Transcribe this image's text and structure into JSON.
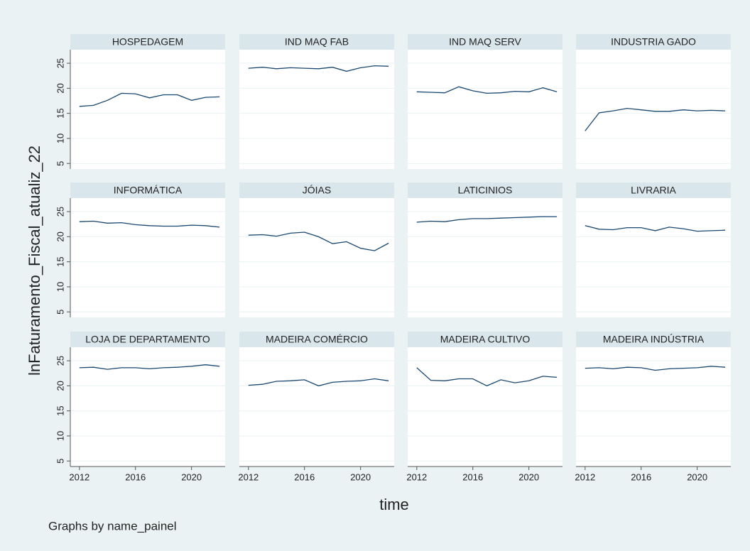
{
  "ylabel": "lnFaturamento_Fiscal_atualiz_22",
  "xlabel": "time",
  "note": "Graphs by name_painel",
  "chart_data": [
    {
      "type": "line",
      "title": "HOSPEDAGEM",
      "x": [
        2012,
        2013,
        2014,
        2015,
        2016,
        2017,
        2018,
        2019,
        2020,
        2021,
        2022
      ],
      "values": [
        16.4,
        16.6,
        17.6,
        19.0,
        18.9,
        18.1,
        18.7,
        18.7,
        17.6,
        18.2,
        18.3
      ],
      "color": "#1a476f",
      "xlim": [
        2011.35,
        2022.4
      ],
      "xticks": [
        2012,
        2016,
        2020
      ],
      "ylim": [
        3.9,
        27.7
      ],
      "yticks": [
        5,
        10,
        15,
        20,
        25
      ],
      "grid": true
    },
    {
      "type": "line",
      "title": "IND MAQ FAB",
      "x": [
        2012,
        2013,
        2014,
        2015,
        2016,
        2017,
        2018,
        2019,
        2020,
        2021,
        2022
      ],
      "values": [
        24.0,
        24.2,
        23.9,
        24.1,
        24.0,
        23.9,
        24.2,
        23.4,
        24.1,
        24.5,
        24.4
      ],
      "color": "#1a476f",
      "xlim": [
        2011.35,
        2022.4
      ],
      "xticks": [
        2012,
        2016,
        2020
      ],
      "ylim": [
        3.9,
        27.7
      ],
      "yticks": [
        5,
        10,
        15,
        20,
        25
      ],
      "grid": true
    },
    {
      "type": "line",
      "title": "IND MAQ SERV",
      "x": [
        2012,
        2013,
        2014,
        2015,
        2016,
        2017,
        2018,
        2019,
        2020,
        2021,
        2022
      ],
      "values": [
        19.3,
        19.2,
        19.1,
        20.3,
        19.5,
        19.0,
        19.1,
        19.4,
        19.3,
        20.1,
        19.3
      ],
      "color": "#1a476f",
      "xlim": [
        2011.35,
        2022.4
      ],
      "xticks": [
        2012,
        2016,
        2020
      ],
      "ylim": [
        3.9,
        27.7
      ],
      "yticks": [
        5,
        10,
        15,
        20,
        25
      ],
      "grid": true
    },
    {
      "type": "line",
      "title": "INDUSTRIA GADO",
      "x": [
        2012,
        2013,
        2014,
        2015,
        2016,
        2017,
        2018,
        2019,
        2020,
        2021,
        2022
      ],
      "values": [
        11.5,
        15.1,
        15.5,
        16.0,
        15.7,
        15.4,
        15.4,
        15.7,
        15.5,
        15.6,
        15.5
      ],
      "color": "#1a476f",
      "xlim": [
        2011.35,
        2022.4
      ],
      "xticks": [
        2012,
        2016,
        2020
      ],
      "ylim": [
        3.9,
        27.7
      ],
      "yticks": [
        5,
        10,
        15,
        20,
        25
      ],
      "grid": true
    },
    {
      "type": "line",
      "title": "INFORMÁTICA",
      "x": [
        2012,
        2013,
        2014,
        2015,
        2016,
        2017,
        2018,
        2019,
        2020,
        2021,
        2022
      ],
      "values": [
        23.0,
        23.1,
        22.7,
        22.8,
        22.4,
        22.2,
        22.1,
        22.1,
        22.3,
        22.2,
        21.9
      ],
      "color": "#1a476f",
      "xlim": [
        2011.35,
        2022.4
      ],
      "xticks": [
        2012,
        2016,
        2020
      ],
      "ylim": [
        3.9,
        27.7
      ],
      "yticks": [
        5,
        10,
        15,
        20,
        25
      ],
      "grid": true
    },
    {
      "type": "line",
      "title": "JÓIAS",
      "x": [
        2012,
        2013,
        2014,
        2015,
        2016,
        2017,
        2018,
        2019,
        2020,
        2021,
        2022
      ],
      "values": [
        20.3,
        20.4,
        20.1,
        20.7,
        20.9,
        20.0,
        18.6,
        19.0,
        17.7,
        17.2,
        18.7
      ],
      "color": "#1a476f",
      "xlim": [
        2011.35,
        2022.4
      ],
      "xticks": [
        2012,
        2016,
        2020
      ],
      "ylim": [
        3.9,
        27.7
      ],
      "yticks": [
        5,
        10,
        15,
        20,
        25
      ],
      "grid": true
    },
    {
      "type": "line",
      "title": "LATICINIOS",
      "x": [
        2012,
        2013,
        2014,
        2015,
        2016,
        2017,
        2018,
        2019,
        2020,
        2021,
        2022
      ],
      "values": [
        22.9,
        23.1,
        23.0,
        23.4,
        23.6,
        23.6,
        23.7,
        23.8,
        23.9,
        24.0,
        24.0
      ],
      "color": "#1a476f",
      "xlim": [
        2011.35,
        2022.4
      ],
      "xticks": [
        2012,
        2016,
        2020
      ],
      "ylim": [
        3.9,
        27.7
      ],
      "yticks": [
        5,
        10,
        15,
        20,
        25
      ],
      "grid": true
    },
    {
      "type": "line",
      "title": "LIVRARIA",
      "x": [
        2012,
        2013,
        2014,
        2015,
        2016,
        2017,
        2018,
        2019,
        2020,
        2021,
        2022
      ],
      "values": [
        22.2,
        21.5,
        21.4,
        21.8,
        21.8,
        21.2,
        21.9,
        21.6,
        21.1,
        21.2,
        21.3
      ],
      "color": "#1a476f",
      "xlim": [
        2011.35,
        2022.4
      ],
      "xticks": [
        2012,
        2016,
        2020
      ],
      "ylim": [
        3.9,
        27.7
      ],
      "yticks": [
        5,
        10,
        15,
        20,
        25
      ],
      "grid": true
    },
    {
      "type": "line",
      "title": "LOJA DE DEPARTAMENTO",
      "x": [
        2012,
        2013,
        2014,
        2015,
        2016,
        2017,
        2018,
        2019,
        2020,
        2021,
        2022
      ],
      "values": [
        23.6,
        23.7,
        23.3,
        23.6,
        23.6,
        23.4,
        23.6,
        23.7,
        23.9,
        24.2,
        23.9
      ],
      "color": "#1a476f",
      "xlim": [
        2011.35,
        2022.4
      ],
      "xticks": [
        2012,
        2016,
        2020
      ],
      "ylim": [
        3.9,
        27.7
      ],
      "yticks": [
        5,
        10,
        15,
        20,
        25
      ],
      "grid": true
    },
    {
      "type": "line",
      "title": "MADEIRA COMÉRCIO",
      "x": [
        2012,
        2013,
        2014,
        2015,
        2016,
        2017,
        2018,
        2019,
        2020,
        2021,
        2022
      ],
      "values": [
        20.1,
        20.3,
        20.9,
        21.0,
        21.2,
        20.0,
        20.7,
        20.9,
        21.0,
        21.4,
        21.0
      ],
      "color": "#1a476f",
      "xlim": [
        2011.35,
        2022.4
      ],
      "xticks": [
        2012,
        2016,
        2020
      ],
      "ylim": [
        3.9,
        27.7
      ],
      "yticks": [
        5,
        10,
        15,
        20,
        25
      ],
      "grid": true
    },
    {
      "type": "line",
      "title": "MADEIRA CULTIVO",
      "x": [
        2012,
        2013,
        2014,
        2015,
        2016,
        2017,
        2018,
        2019,
        2020,
        2021,
        2022
      ],
      "values": [
        23.6,
        21.1,
        21.0,
        21.4,
        21.4,
        20.0,
        21.2,
        20.6,
        21.0,
        21.9,
        21.7
      ],
      "color": "#1a476f",
      "xlim": [
        2011.35,
        2022.4
      ],
      "xticks": [
        2012,
        2016,
        2020
      ],
      "ylim": [
        3.9,
        27.7
      ],
      "yticks": [
        5,
        10,
        15,
        20,
        25
      ],
      "grid": true
    },
    {
      "type": "line",
      "title": "MADEIRA INDÚSTRIA",
      "x": [
        2012,
        2013,
        2014,
        2015,
        2016,
        2017,
        2018,
        2019,
        2020,
        2021,
        2022
      ],
      "values": [
        23.5,
        23.6,
        23.4,
        23.7,
        23.6,
        23.1,
        23.4,
        23.5,
        23.6,
        23.9,
        23.7
      ],
      "color": "#1a476f",
      "xlim": [
        2011.35,
        2022.4
      ],
      "xticks": [
        2012,
        2016,
        2020
      ],
      "ylim": [
        3.9,
        27.7
      ],
      "yticks": [
        5,
        10,
        15,
        20,
        25
      ],
      "grid": true
    }
  ]
}
